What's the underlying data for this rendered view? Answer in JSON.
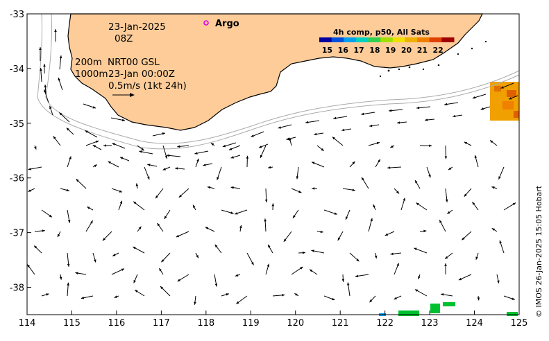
{
  "map": {
    "date": "23-Jan-2025",
    "hour": "08Z",
    "contour_label": "200m",
    "contour_label2": "1000m",
    "product": "NRT00 GSL",
    "analysis_time": "23-Jan 00:00Z",
    "scale_label": "0.5m/s (1kt 24h)",
    "argo_label": "Argo",
    "credit": "© IMOS 26-Jan-2025 15:05 Hobart",
    "lon_ticks": [
      "114",
      "115",
      "116",
      "117",
      "118",
      "119",
      "120",
      "121",
      "122",
      "123",
      "124",
      "125"
    ],
    "lat_ticks": [
      "-33",
      "-34",
      "-35",
      "-36",
      "-37",
      "-38"
    ],
    "lon_range": [
      114,
      125
    ],
    "lat_range": [
      -38.5,
      -33
    ]
  },
  "legend": {
    "title": "4h comp, p50, All Sats",
    "labels": [
      "15",
      "16",
      "17",
      "18",
      "19",
      "20",
      "21",
      "22"
    ],
    "range": [
      14.5,
      23
    ],
    "colors": [
      "#0000a0",
      "#0050e0",
      "#00a0f0",
      "#00d0c0",
      "#30d050",
      "#a0e000",
      "#f0e000",
      "#f0b000",
      "#f08000",
      "#e04000",
      "#a00000"
    ]
  },
  "colors": {
    "land": "#fdcc99",
    "argo_marker": "#e000e0"
  }
}
